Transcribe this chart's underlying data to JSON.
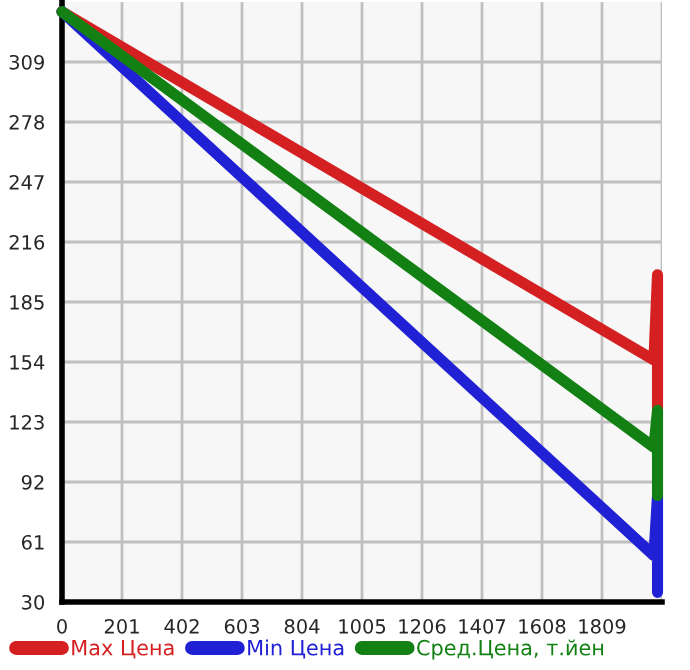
{
  "chart_data": {
    "type": "line",
    "series": [
      {
        "name": "Max Цена",
        "color": "#d42020",
        "x": [
          0,
          1983,
          1995,
          1995
        ],
        "values": [
          335,
          155,
          199,
          130
        ]
      },
      {
        "name": "Min Цена",
        "color": "#2020d4",
        "x": [
          0,
          1983,
          1995,
          1995
        ],
        "values": [
          335,
          54,
          85,
          35
        ]
      },
      {
        "name": "Сред.Цена, т.йен",
        "color": "#128012",
        "x": [
          0,
          1983,
          1995,
          1995
        ],
        "values": [
          335,
          110,
          129,
          85
        ]
      }
    ],
    "xlim": [
      0,
      2010
    ],
    "ylim": [
      30,
      340
    ],
    "xticks": [
      0,
      201,
      402,
      603,
      804,
      1005,
      1206,
      1407,
      1608,
      1809,
      {
        "value": 2010,
        "label": null
      }
    ],
    "yticks": [
      30,
      61,
      92,
      123,
      154,
      185,
      216,
      247,
      278,
      309
    ],
    "grid": true,
    "legend": "bottom",
    "marker": "none",
    "line_style": "solid"
  }
}
